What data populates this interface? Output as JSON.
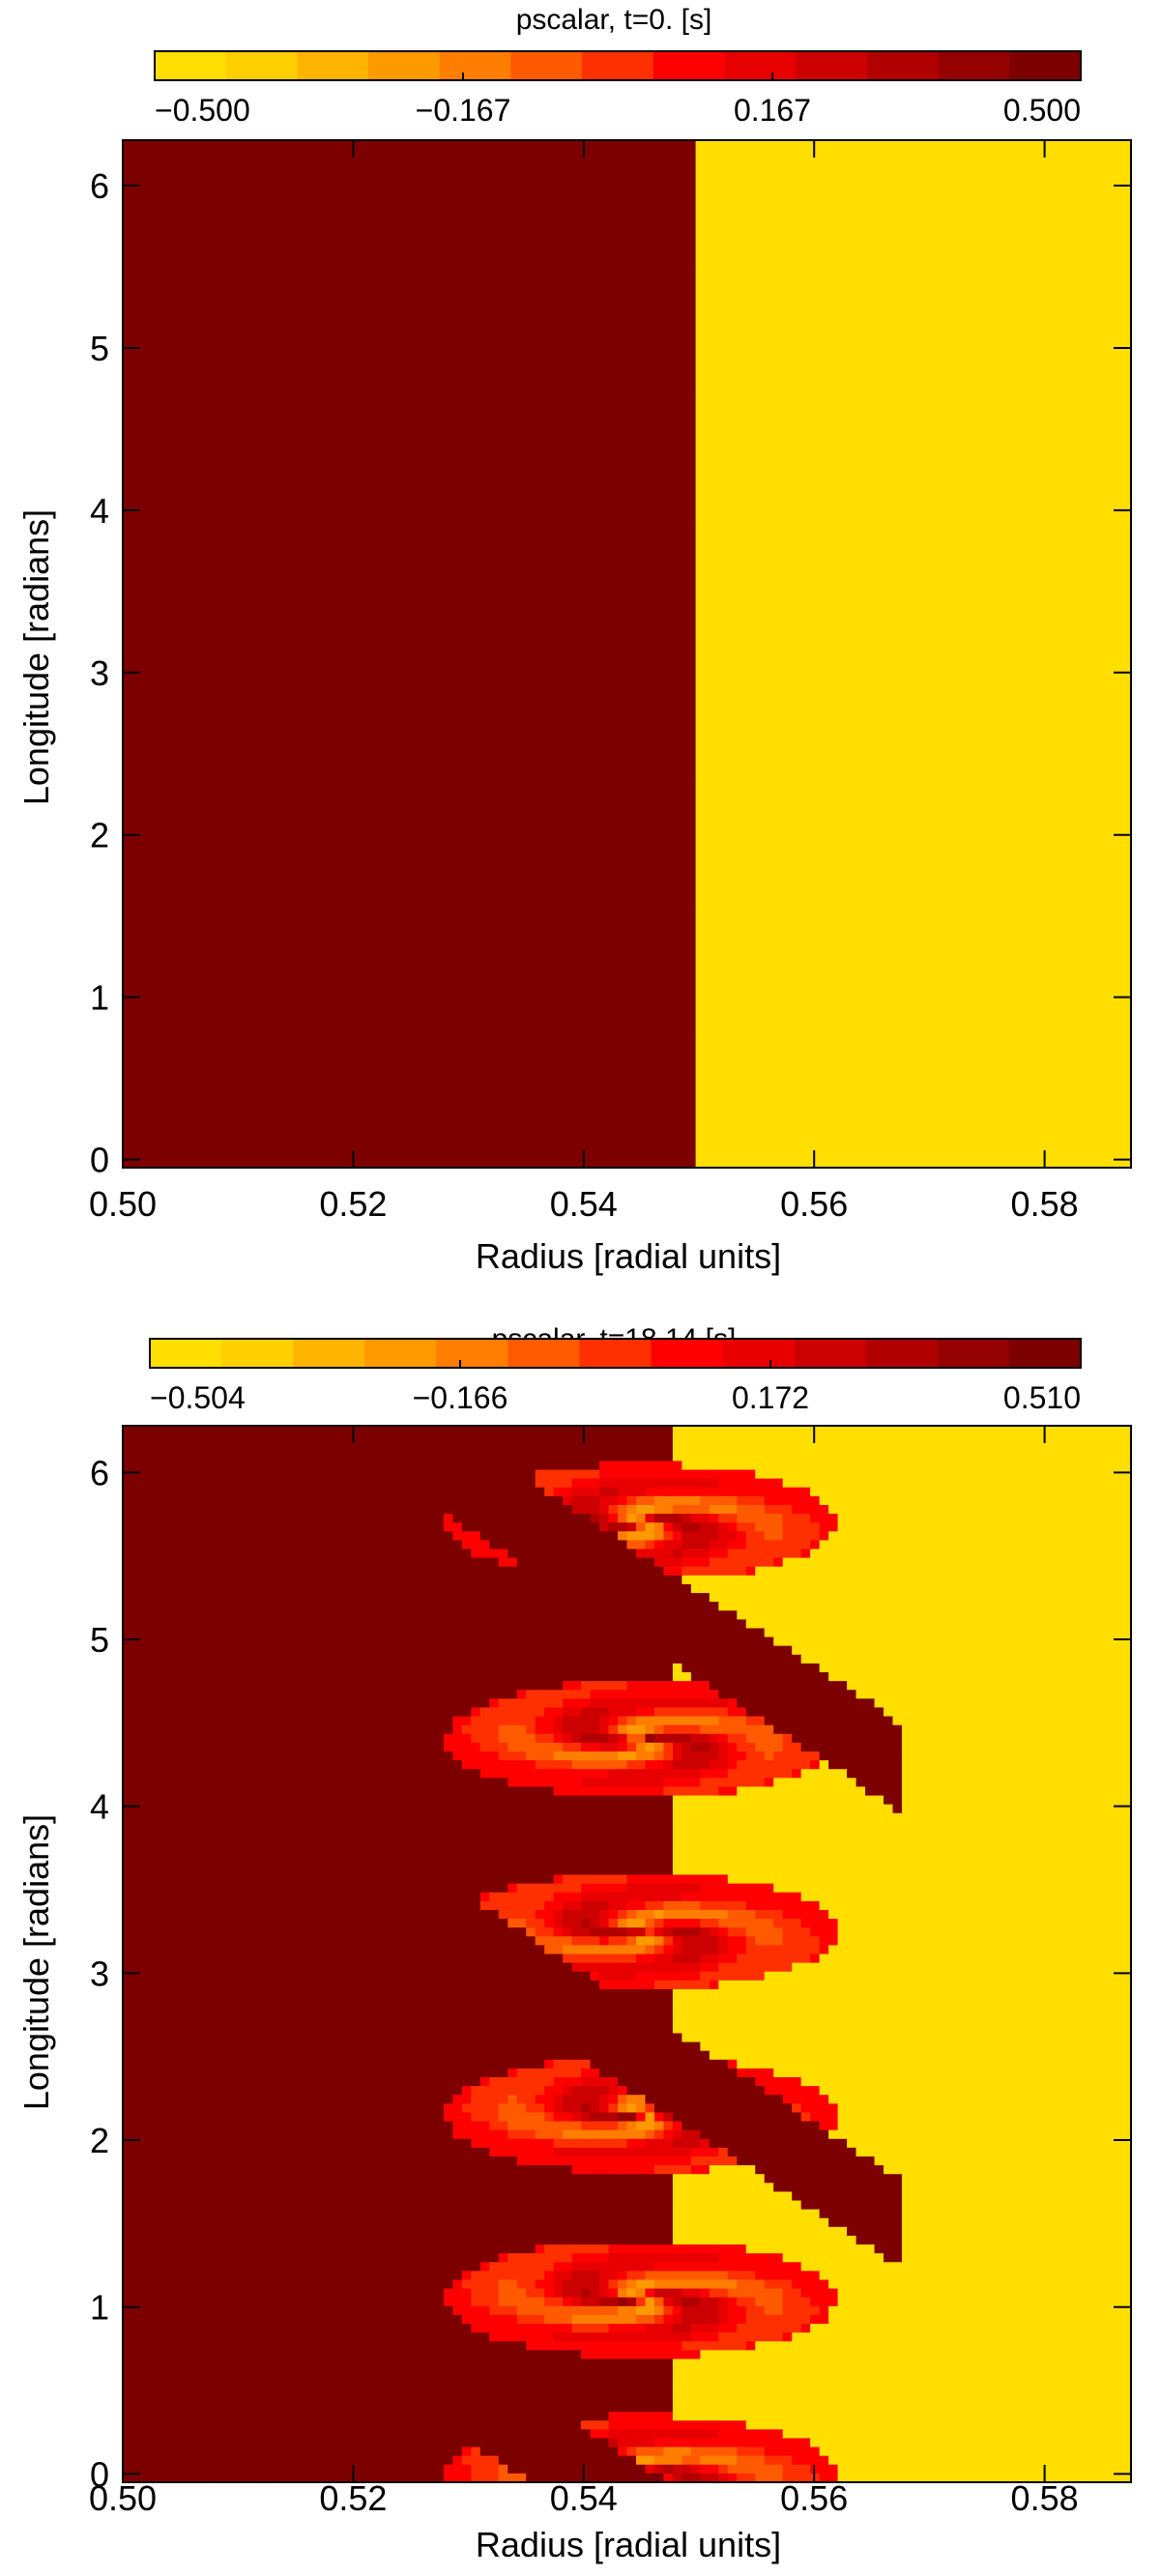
{
  "chart_data": [
    {
      "type": "heatmap",
      "title": "pscalar, t=0.  [s]",
      "xlabel": "Radius [radial units]",
      "ylabel": "Longitude [radians]",
      "xlim": [
        0.5,
        0.5875
      ],
      "ylim": [
        -0.05,
        6.28
      ],
      "xticks": [
        "0.50",
        "0.52",
        "0.54",
        "0.56",
        "0.58"
      ],
      "xtick_values": [
        0.5,
        0.52,
        0.54,
        0.56,
        0.58
      ],
      "yticks": [
        "0",
        "1",
        "2",
        "3",
        "4",
        "5",
        "6"
      ],
      "ytick_values": [
        0,
        1,
        2,
        3,
        4,
        5,
        6
      ],
      "colorbar": {
        "min": -0.5,
        "max": 0.5,
        "levels": 16,
        "tick_labels": [
          "−0.500",
          "−0.167",
          "0.167",
          "0.500"
        ],
        "tick_values": [
          -0.5,
          -0.167,
          0.167,
          0.5
        ],
        "colors": [
          "#ffde00",
          "#ffcf00",
          "#ffb400",
          "#ff9900",
          "#ff7d00",
          "#ff5a00",
          "#ff3000",
          "#ff0000",
          "#e80000",
          "#cc0000",
          "#b00000",
          "#950000",
          "#7d0000"
        ]
      },
      "field": {
        "description_values": {
          "inner_value": 0.5,
          "outer_value": -0.5
        },
        "interface_radius": 0.5497,
        "interface_width": 0.0003
      }
    },
    {
      "type": "heatmap",
      "title": "pscalar, t=18.14  [s]",
      "xlabel": "Radius [radial units]",
      "ylabel": "Longitude [radians]",
      "xlim": [
        0.5,
        0.5875
      ],
      "ylim": [
        -0.05,
        6.28
      ],
      "xticks": [
        "0.50",
        "0.52",
        "0.54",
        "0.56",
        "0.58"
      ],
      "xtick_values": [
        0.5,
        0.52,
        0.54,
        0.56,
        0.58
      ],
      "yticks": [
        "0",
        "1",
        "2",
        "3",
        "4",
        "5",
        "6"
      ],
      "ytick_values": [
        0,
        1,
        2,
        3,
        4,
        5,
        6
      ],
      "colorbar": {
        "min": -0.504,
        "max": 0.51,
        "levels": 16,
        "tick_labels": [
          "−0.504",
          "−0.166",
          "0.172",
          "0.510"
        ],
        "tick_values": [
          -0.504,
          -0.166,
          0.172,
          0.51
        ],
        "colors": [
          "#ffde00",
          "#ffcf00",
          "#ffb400",
          "#ff9900",
          "#ff7d00",
          "#ff5a00",
          "#ff3000",
          "#ff0000",
          "#e80000",
          "#cc0000",
          "#b00000",
          "#950000",
          "#7d0000"
        ]
      },
      "field": {
        "vortex_rows": [
          0.0,
          1.05,
          2.15,
          3.25,
          4.4,
          5.7
        ],
        "vortex_center_radius": 0.545,
        "vortex_half_width_r": 0.017,
        "vortex_half_height": 0.35
      }
    }
  ]
}
